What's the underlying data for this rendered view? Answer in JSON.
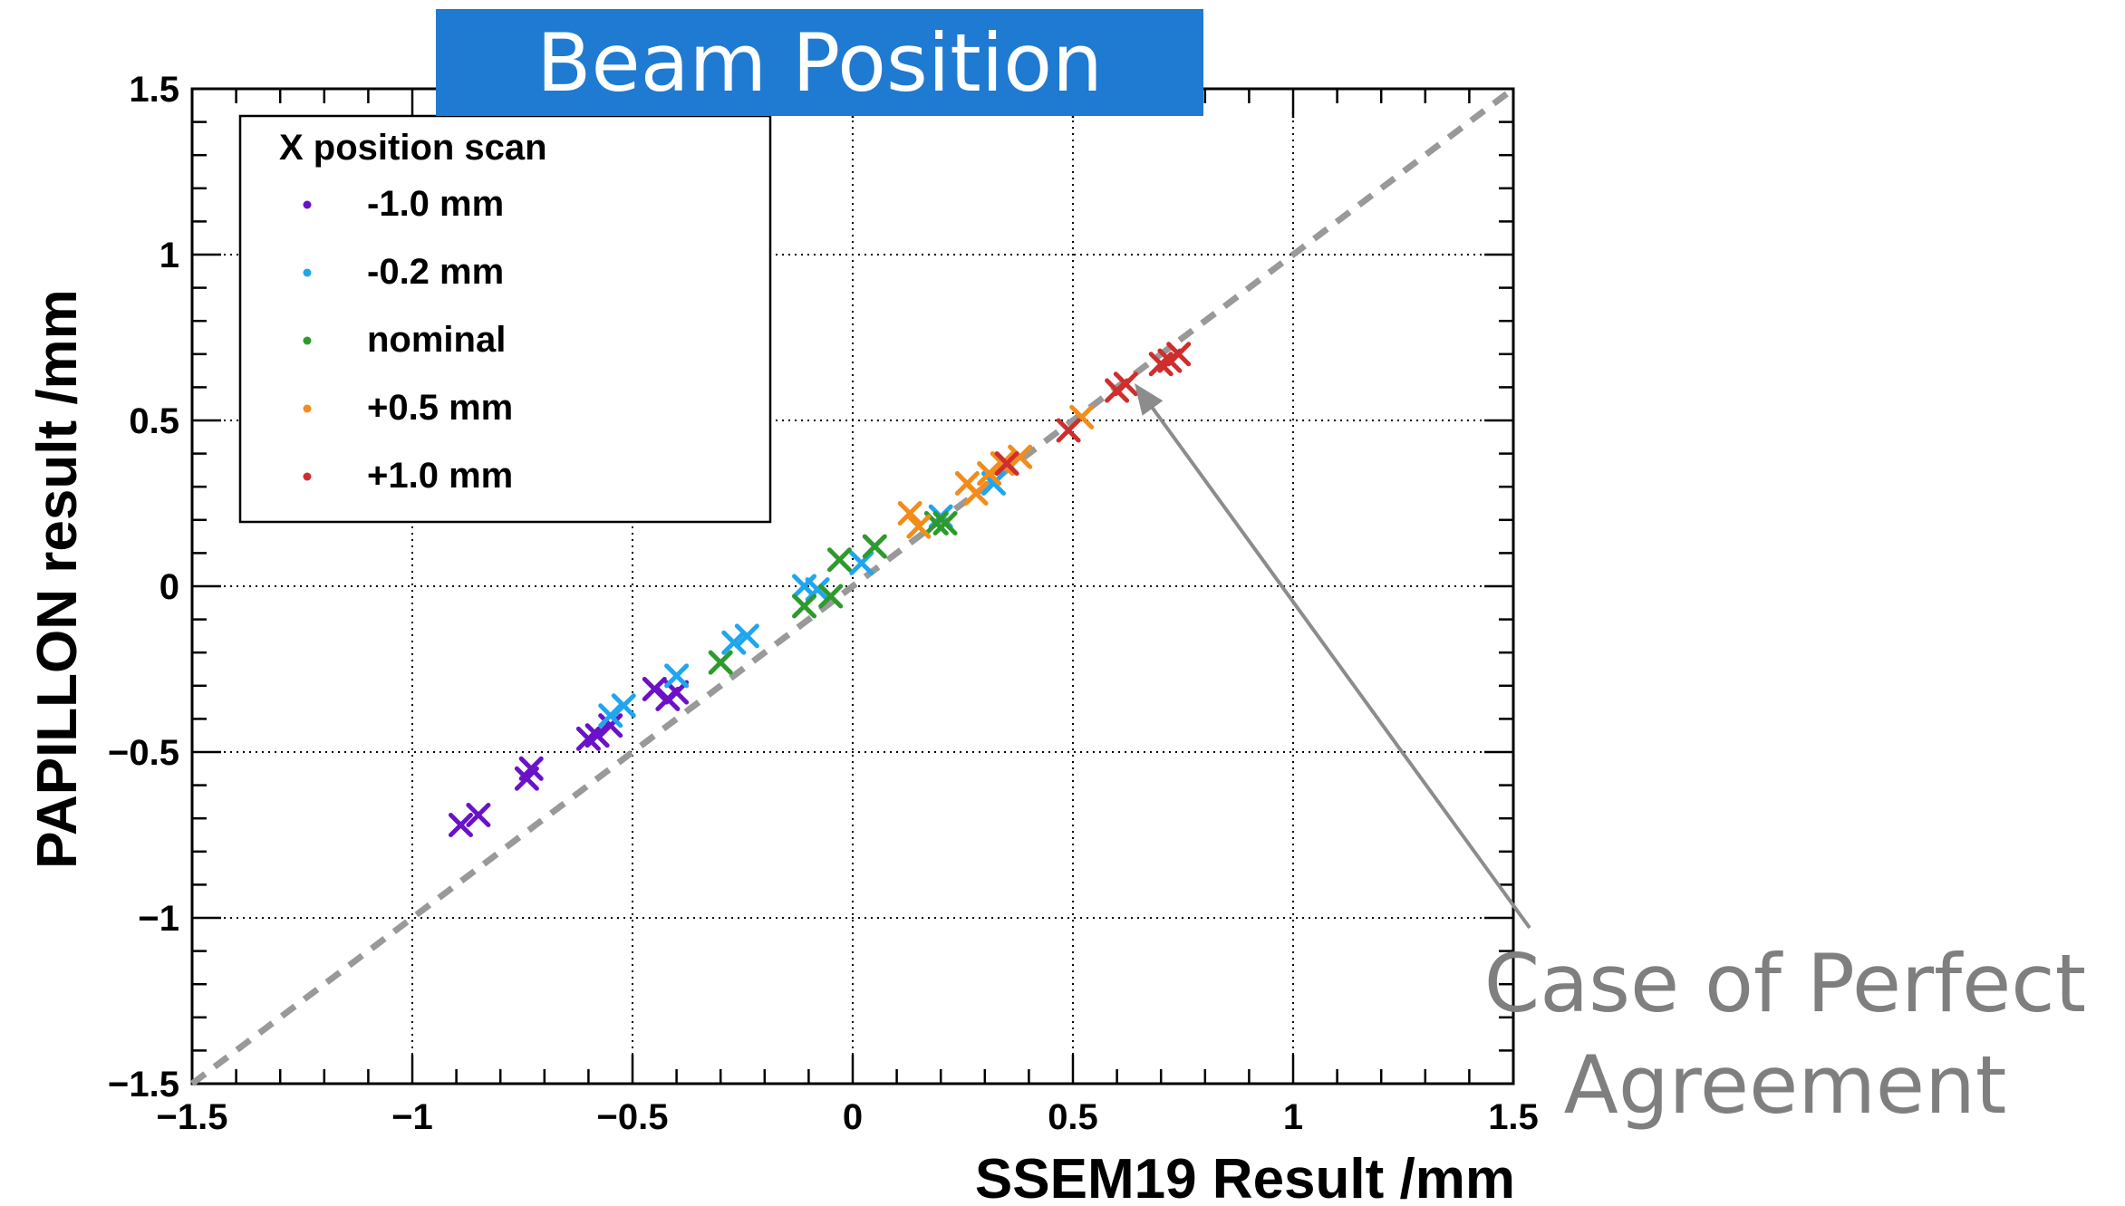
{
  "slide": {
    "title": "Beam Position",
    "annotation_line1": "Case of Perfect",
    "annotation_line2": "Agreement"
  },
  "chart_data": {
    "type": "scatter",
    "xlabel": "SSEM19 Result /mm",
    "ylabel": "PAPILLON result /mm",
    "xlim": [
      -1.5,
      1.5
    ],
    "ylim": [
      -1.5,
      1.5
    ],
    "x_ticks": [
      "-1.5",
      "-1",
      "-0.5",
      "0",
      "0.5",
      "1",
      "1.5"
    ],
    "y_ticks": [
      "-1.5",
      "-1",
      "-0.5",
      "0",
      "0.5",
      "1",
      "1.5"
    ],
    "grid": true,
    "legend_title": "X position scan",
    "legend_position": "top-left",
    "reference_line": {
      "style": "dashed",
      "color": "#999999",
      "from": [
        -1.5,
        -1.5
      ],
      "to": [
        1.5,
        1.5
      ]
    },
    "series": [
      {
        "name": "-1.0 mm",
        "color": "#6a12c8",
        "marker": "x",
        "points": [
          [
            -0.89,
            -0.72
          ],
          [
            -0.85,
            -0.69
          ],
          [
            -0.74,
            -0.58
          ],
          [
            -0.73,
            -0.55
          ],
          [
            -0.6,
            -0.46
          ],
          [
            -0.58,
            -0.45
          ],
          [
            -0.55,
            -0.42
          ],
          [
            -0.45,
            -0.31
          ],
          [
            -0.42,
            -0.34
          ],
          [
            -0.4,
            -0.32
          ]
        ]
      },
      {
        "name": "-0.2 mm",
        "color": "#1fa6ee",
        "marker": "x",
        "points": [
          [
            -0.55,
            -0.39
          ],
          [
            -0.52,
            -0.36
          ],
          [
            -0.4,
            -0.27
          ],
          [
            -0.27,
            -0.17
          ],
          [
            -0.24,
            -0.15
          ],
          [
            -0.11,
            0.0
          ],
          [
            -0.08,
            -0.01
          ],
          [
            0.02,
            0.07
          ],
          [
            0.2,
            0.21
          ],
          [
            0.32,
            0.31
          ]
        ]
      },
      {
        "name": "nominal",
        "color": "#2e9a2e",
        "marker": "x",
        "points": [
          [
            -0.3,
            -0.23
          ],
          [
            -0.11,
            -0.06
          ],
          [
            -0.05,
            -0.03
          ],
          [
            -0.03,
            0.08
          ],
          [
            0.05,
            0.12
          ],
          [
            0.19,
            0.19
          ],
          [
            0.21,
            0.19
          ]
        ]
      },
      {
        "name": "+0.5 mm",
        "color": "#f28c1b",
        "marker": "x",
        "points": [
          [
            0.13,
            0.22
          ],
          [
            0.15,
            0.18
          ],
          [
            0.26,
            0.31
          ],
          [
            0.28,
            0.28
          ],
          [
            0.31,
            0.34
          ],
          [
            0.34,
            0.37
          ],
          [
            0.38,
            0.39
          ],
          [
            0.52,
            0.51
          ]
        ]
      },
      {
        "name": "+1.0 mm",
        "color": "#cf2e2e",
        "marker": "x",
        "points": [
          [
            0.35,
            0.37
          ],
          [
            0.49,
            0.47
          ],
          [
            0.6,
            0.59
          ],
          [
            0.62,
            0.61
          ],
          [
            0.7,
            0.67
          ],
          [
            0.72,
            0.68
          ],
          [
            0.74,
            0.7
          ]
        ]
      }
    ]
  }
}
